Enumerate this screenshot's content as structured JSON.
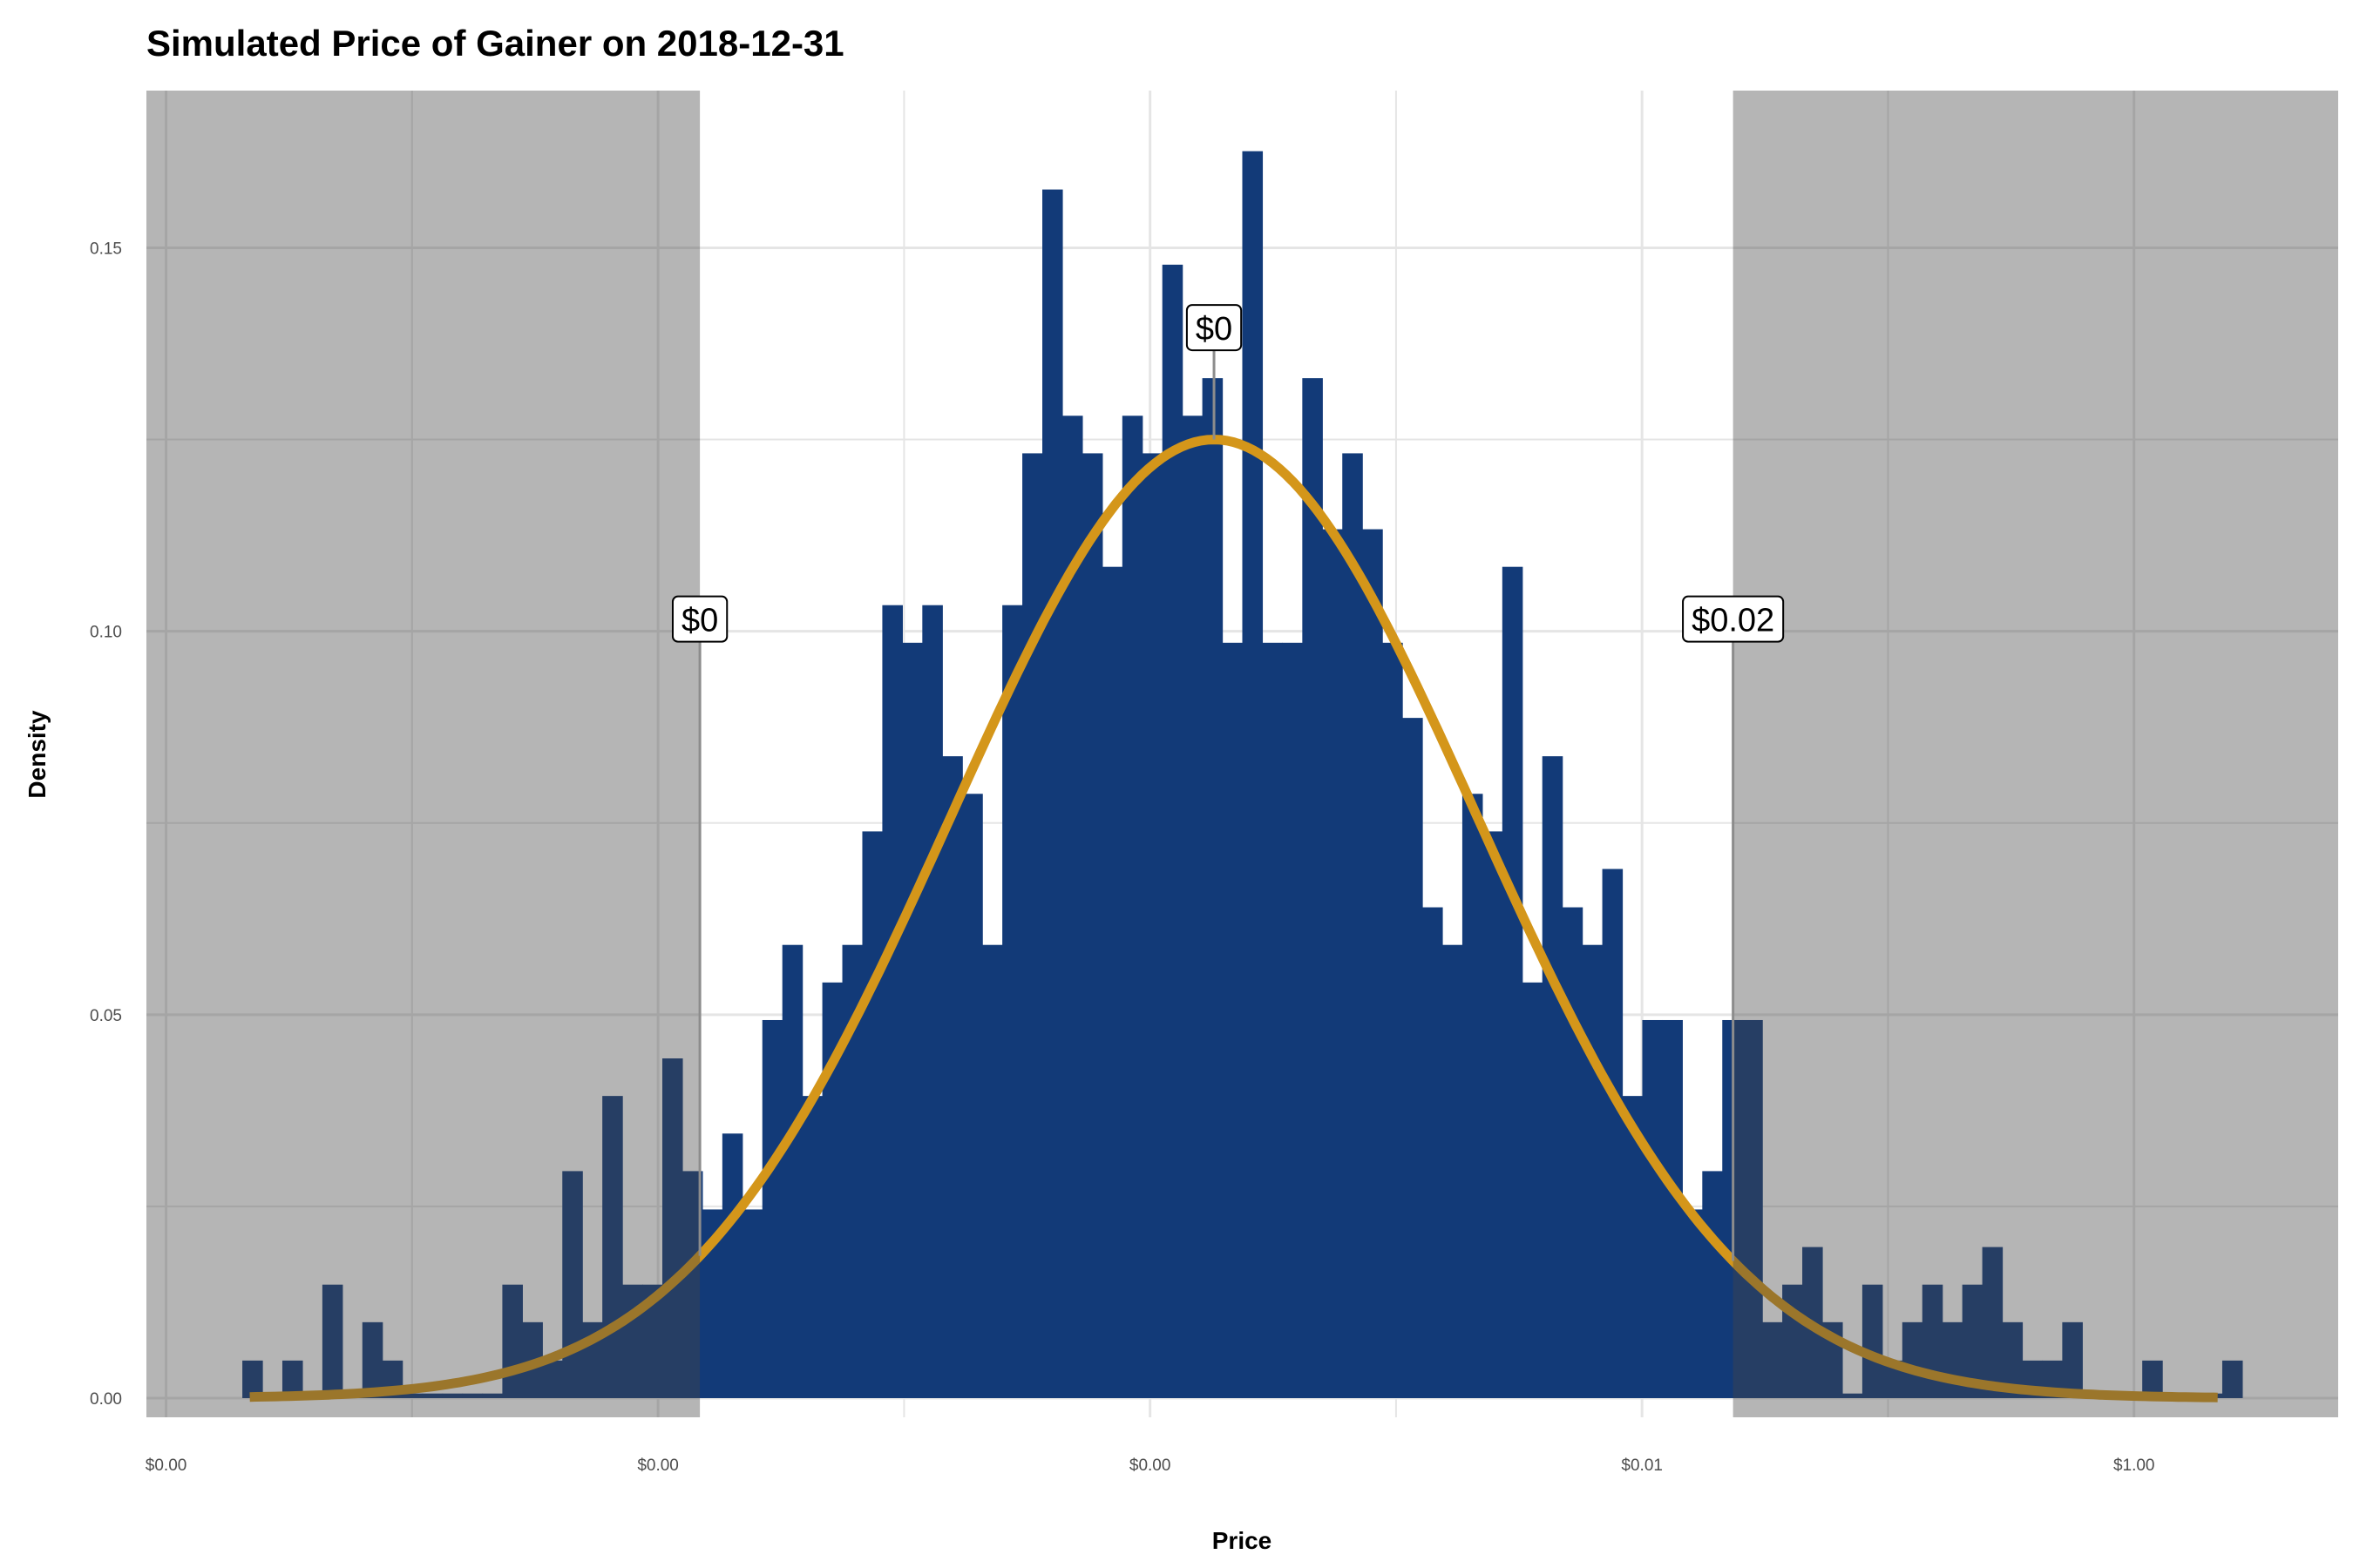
{
  "chart_data": {
    "type": "bar",
    "title": "Simulated Price of Gainer on 2018-12-31",
    "xlabel": "Price",
    "ylabel": "Density",
    "x_scale": "log10",
    "xlim_log10": [
      -8.08,
      0.83
    ],
    "ylim": [
      -0.0025,
      0.1705
    ],
    "grid": true,
    "x_ticks": [
      {
        "log10": -8,
        "label": "$0.00"
      },
      {
        "log10": -6,
        "label": "$0.00"
      },
      {
        "log10": -4,
        "label": "$0.00"
      },
      {
        "log10": -2,
        "label": "$0.01"
      },
      {
        "log10": 0,
        "label": "$1.00"
      }
    ],
    "y_ticks": [
      {
        "value": 0.0,
        "label": "0.00"
      },
      {
        "value": 0.05,
        "label": "0.05"
      },
      {
        "value": 0.1,
        "label": "0.10"
      },
      {
        "value": 0.15,
        "label": "0.15"
      }
    ],
    "histogram": {
      "bin_start_log10": -7.69,
      "bin_width_log10": 0.0813,
      "density": [
        0.0049,
        0,
        0.0049,
        0,
        0.0148,
        0,
        0.0099,
        0.0049,
        0,
        0,
        0,
        0,
        0,
        0.0148,
        0.0099,
        0.0049,
        0.0296,
        0.0099,
        0.0394,
        0.0148,
        0.0148,
        0.0443,
        0.0296,
        0.0246,
        0.0345,
        0.0246,
        0.0493,
        0.0591,
        0.0394,
        0.0542,
        0.0591,
        0.0739,
        0.1034,
        0.0985,
        0.1034,
        0.0837,
        0.0788,
        0.0591,
        0.1034,
        0.1232,
        0.1576,
        0.1281,
        0.1232,
        0.1084,
        0.1281,
        0.1232,
        0.1478,
        0.1281,
        0.133,
        0.0985,
        0.1626,
        0.0985,
        0.0985,
        0.133,
        0.1133,
        0.1232,
        0.1133,
        0.0985,
        0.0887,
        0.064,
        0.0591,
        0.0788,
        0.0739,
        0.1084,
        0.0542,
        0.0837,
        0.064,
        0.0591,
        0.069,
        0.0394,
        0.0493,
        0.0493,
        0.0246,
        0.0296,
        0.0493,
        0.0493,
        0.0099,
        0.0148,
        0.0197,
        0.0099,
        0,
        0.0148,
        0.0049,
        0.0099,
        0.0148,
        0.0099,
        0.0148,
        0.0197,
        0.0099,
        0.0049,
        0.0049,
        0.0099,
        0,
        0,
        0,
        0.0049,
        0,
        0,
        0,
        0.0049
      ]
    },
    "normal_fit": {
      "mean_log10": -3.74,
      "sd_log10": 1.07,
      "peak_density": 0.125,
      "range_log10": [
        -7.66,
        0.34
      ]
    },
    "shaded_regions": [
      {
        "from": "xmin",
        "to_log10": -5.83
      },
      {
        "from_log10": -1.63,
        "to": "xmax"
      }
    ],
    "annotations": [
      {
        "name": "lower-bound",
        "log10": -5.83,
        "label_y": 0.1,
        "text": "$0"
      },
      {
        "name": "median",
        "log10": -3.74,
        "label_y": 0.138,
        "text": "$0"
      },
      {
        "name": "upper-bound",
        "log10": -1.63,
        "label_y": 0.1,
        "text": "$0.02"
      }
    ],
    "colors": {
      "bar": "#123a78",
      "curve": "#d4961a",
      "shade": "rgba(70,70,70,0.4)",
      "grid": "#e5e5e5"
    }
  }
}
